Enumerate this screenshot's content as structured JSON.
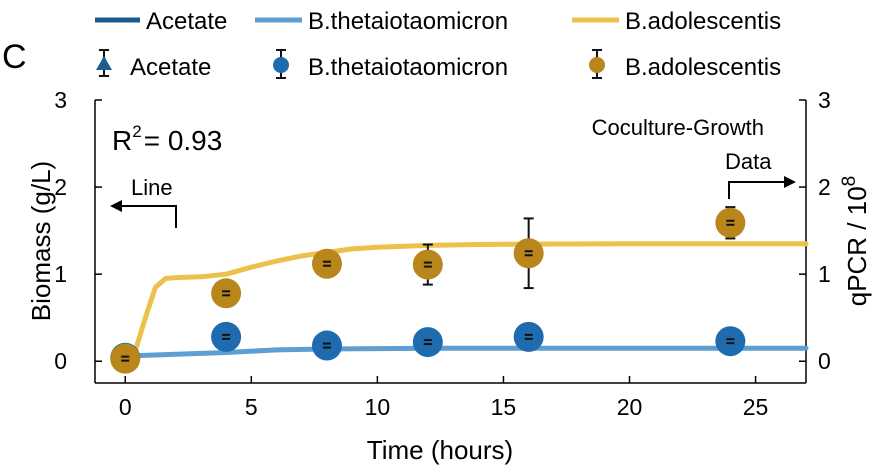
{
  "chart_data": {
    "type": "line",
    "panel_label": "C",
    "title": "Coculture-Growth",
    "xlabel": "Time (hours)",
    "ylabel": "Biomass (g/L)",
    "y2label": "qPCR / 10",
    "y2label_exp": "8",
    "xlim": [
      -1.2,
      27
    ],
    "ylim": [
      -0.25,
      3
    ],
    "xticks": [
      0,
      5,
      10,
      15,
      20,
      25
    ],
    "yticks": [
      0,
      1,
      2,
      3
    ],
    "y2ticks": [
      0,
      1,
      2,
      3
    ],
    "grid": false,
    "legend_position": "top",
    "r2_base": "R",
    "r2_exp": "2",
    "r2_value": "= 0.93",
    "annotation_line": "Line",
    "annotation_data": "Data",
    "legend_lines": [
      {
        "name": "Acetate",
        "color": "#1a5a8c"
      },
      {
        "name": "B.thetaiotaomicron",
        "color": "#5e9ed1"
      },
      {
        "name": "B.adolescentis",
        "color": "#ecc14b"
      }
    ],
    "legend_markers": [
      {
        "name": "Acetate",
        "color": "#1c5f93",
        "marker": "triangle"
      },
      {
        "name": "B.thetaiotaomicron",
        "color": "#1e6bb0",
        "marker": "circle"
      },
      {
        "name": "B.adolescentis",
        "color": "#b8861a",
        "marker": "circle"
      }
    ],
    "series_lines": [
      {
        "color": "#5e9ed1",
        "x": [
          0,
          2,
          4,
          6,
          8,
          10,
          12,
          16,
          20,
          24,
          27
        ],
        "y": [
          0.06,
          0.08,
          0.1,
          0.13,
          0.14,
          0.145,
          0.15,
          0.15,
          0.15,
          0.15,
          0.15
        ]
      },
      {
        "color": "#ecc14b",
        "x": [
          0,
          0.4,
          0.8,
          1.2,
          1.6,
          2,
          3,
          4,
          5,
          6,
          7,
          8,
          9,
          10,
          12,
          14,
          16,
          20,
          24,
          27
        ],
        "y": [
          0.03,
          0.12,
          0.5,
          0.85,
          0.95,
          0.96,
          0.97,
          1.0,
          1.08,
          1.15,
          1.21,
          1.25,
          1.29,
          1.31,
          1.33,
          1.34,
          1.345,
          1.35,
          1.35,
          1.35
        ]
      }
    ],
    "series_points": [
      {
        "color": "#1e6bb0",
        "x": [
          0,
          4,
          8,
          12,
          16,
          24
        ],
        "y": [
          0.04,
          0.28,
          0.18,
          0.22,
          0.28,
          0.23
        ],
        "err": [
          0.02,
          0.02,
          0.03,
          0.02,
          0.05,
          0.02
        ]
      },
      {
        "color": "#b8861a",
        "x": [
          0,
          4,
          8,
          12,
          16,
          24
        ],
        "y": [
          0.03,
          0.78,
          1.12,
          1.11,
          1.24,
          1.59
        ],
        "err": [
          0.02,
          0.06,
          0.14,
          0.23,
          0.4,
          0.18
        ]
      }
    ]
  }
}
